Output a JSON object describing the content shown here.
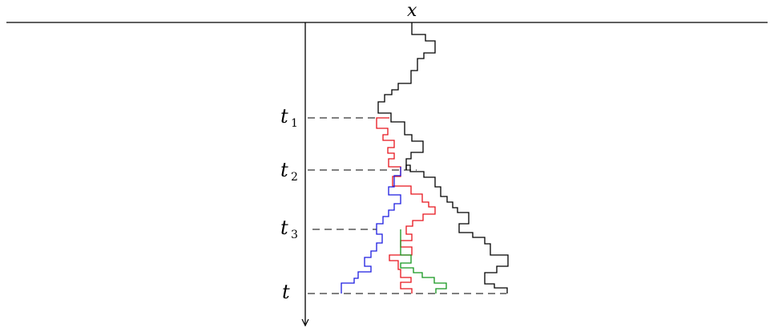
{
  "labels": {
    "x_axis": "x",
    "t1_main": "t",
    "t1_sub": "1",
    "t2_main": "t",
    "t2_sub": "2",
    "t3_main": "t",
    "t3_sub": "3",
    "t_final": "t"
  },
  "colors": {
    "axis": "#000000",
    "path_black": "#000000",
    "path_red": "#e8141c",
    "path_blue": "#1c1ce0",
    "path_green": "#14961e"
  }
}
